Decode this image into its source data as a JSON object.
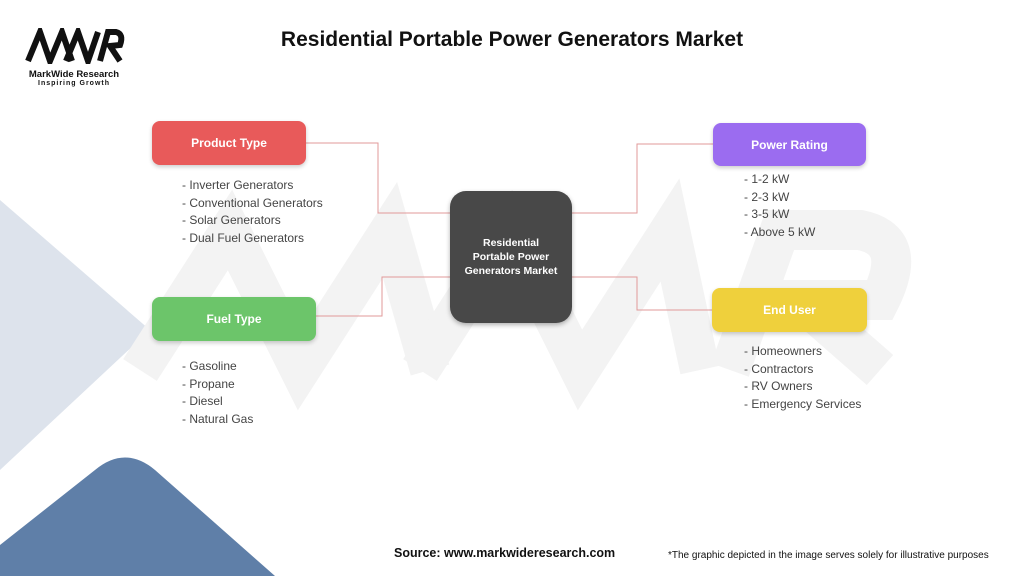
{
  "title": "Residential Portable Power Generators Market",
  "logo": {
    "brand": "MarkWide Research",
    "tagline": "Inspiring Growth",
    "mark": "MWR"
  },
  "center": "Residential Portable Power Generators Market",
  "categories": [
    {
      "label": "Product Type",
      "color": "#e85a5a",
      "items": [
        "- Inverter Generators",
        "- Conventional Generators",
        "- Solar Generators",
        "- Dual Fuel Generators"
      ]
    },
    {
      "label": "Fuel Type",
      "color": "#6cc56a",
      "items": [
        "- Gasoline",
        "- Propane",
        "- Diesel",
        "- Natural Gas"
      ]
    },
    {
      "label": "Power Rating",
      "color": "#9b6cf0",
      "items": [
        "- 1-2 kW",
        "- 2-3 kW",
        "- 3-5 kW",
        "- Above 5 kW"
      ]
    },
    {
      "label": "End User",
      "color": "#efd03c",
      "items": [
        "- Homeowners",
        "- Contractors",
        "- RV Owners",
        "- Emergency Services"
      ]
    }
  ],
  "footer": {
    "source": "Source: www.markwideresearch.com",
    "disclaimer": "*The graphic depicted in the image serves solely for illustrative purposes"
  }
}
